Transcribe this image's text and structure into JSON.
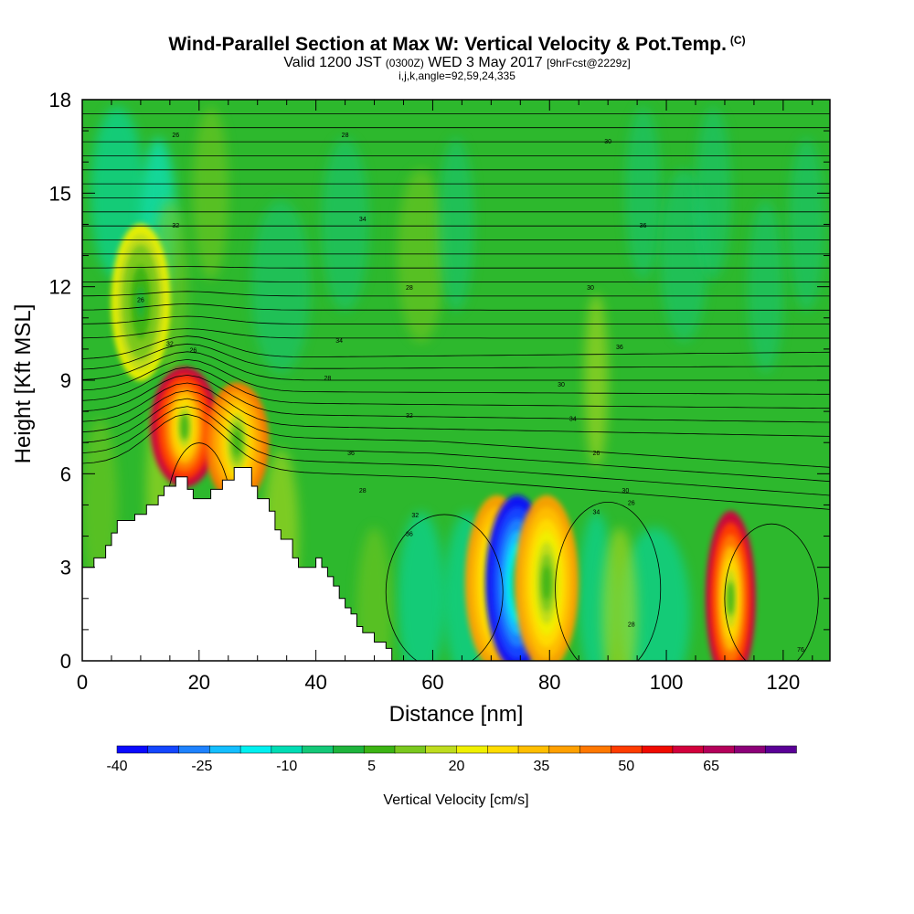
{
  "title": {
    "main": "Wind-Parallel Section at Max W: Vertical Velocity & Pot.Temp.",
    "copyright": "(C)",
    "valid_prefix": "Valid 1200 JST",
    "valid_zulu": "(0300Z)",
    "valid_date": "WED 3 May 2017",
    "forecast": "[9hrFcst@2229z]",
    "indices": "i,j,k,angle=92,59,24,335"
  },
  "chart_data": {
    "type": "heatmap",
    "xlabel": "Distance [nm]",
    "ylabel": "Height [Kft MSL]",
    "xlim": [
      0,
      128
    ],
    "ylim": [
      0,
      18
    ],
    "x_ticks": [
      "0",
      "20",
      "40",
      "60",
      "80",
      "100",
      "120"
    ],
    "y_ticks": [
      "0",
      "3",
      "6",
      "9",
      "12",
      "15",
      "18"
    ],
    "background_color": "#2db82d",
    "colorbar": {
      "label": "Vertical Velocity [cm/s]",
      "tick_labels": [
        "-40",
        "-25",
        "-10",
        "5",
        "20",
        "35",
        "50",
        "65"
      ],
      "colors": [
        "#0a0aff",
        "#1446ff",
        "#1e82ff",
        "#14beff",
        "#00f0f0",
        "#00dcb4",
        "#14c878",
        "#1eb43c",
        "#3cb414",
        "#7ac81e",
        "#bedc1e",
        "#f0f000",
        "#ffdc00",
        "#ffbe00",
        "#ffa000",
        "#ff7800",
        "#ff3c00",
        "#f00a00",
        "#d2003c",
        "#b4005a",
        "#8c0078",
        "#5a0096"
      ]
    },
    "terrain": [
      [
        0,
        0
      ],
      [
        0,
        3
      ],
      [
        2,
        3
      ],
      [
        2,
        3.3
      ],
      [
        4,
        3.3
      ],
      [
        4,
        3.7
      ],
      [
        5,
        3.7
      ],
      [
        5,
        4.1
      ],
      [
        6,
        4.1
      ],
      [
        6,
        4.5
      ],
      [
        9,
        4.5
      ],
      [
        9,
        4.7
      ],
      [
        11,
        4.7
      ],
      [
        11,
        5
      ],
      [
        13,
        5
      ],
      [
        13,
        5.3
      ],
      [
        14,
        5.3
      ],
      [
        14,
        5.6
      ],
      [
        16,
        5.6
      ],
      [
        16,
        5.9
      ],
      [
        18,
        5.9
      ],
      [
        18,
        5.5
      ],
      [
        19,
        5.5
      ],
      [
        19,
        5.2
      ],
      [
        22,
        5.2
      ],
      [
        22,
        5.5
      ],
      [
        24,
        5.5
      ],
      [
        24,
        5.8
      ],
      [
        26,
        5.8
      ],
      [
        26,
        6.2
      ],
      [
        29,
        6.2
      ],
      [
        29,
        5.6
      ],
      [
        30,
        5.6
      ],
      [
        30,
        5.2
      ],
      [
        32,
        5.2
      ],
      [
        32,
        4.8
      ],
      [
        33,
        4.8
      ],
      [
        33,
        4.2
      ],
      [
        34,
        4.2
      ],
      [
        34,
        3.9
      ],
      [
        36,
        3.9
      ],
      [
        36,
        3.3
      ],
      [
        37,
        3.3
      ],
      [
        37,
        3
      ],
      [
        40,
        3
      ],
      [
        40,
        3.3
      ],
      [
        41,
        3.3
      ],
      [
        41,
        3
      ],
      [
        42,
        3
      ],
      [
        42,
        2.7
      ],
      [
        43,
        2.7
      ],
      [
        43,
        2.4
      ],
      [
        44,
        2.4
      ],
      [
        44,
        2
      ],
      [
        45,
        2
      ],
      [
        45,
        1.7
      ],
      [
        46,
        1.7
      ],
      [
        46,
        1.5
      ],
      [
        47,
        1.5
      ],
      [
        47,
        1.1
      ],
      [
        48,
        1.1
      ],
      [
        48,
        0.9
      ],
      [
        50,
        0.9
      ],
      [
        50,
        0.6
      ],
      [
        52,
        0.6
      ],
      [
        52,
        0.4
      ],
      [
        53,
        0.4
      ],
      [
        53,
        0
      ]
    ],
    "isentrope_labels": [
      "26",
      "28",
      "30",
      "32",
      "34",
      "36",
      "76"
    ],
    "velocity_cells": [
      {
        "x": 17.5,
        "y": 7.5,
        "w": 60,
        "color_level": 65
      },
      {
        "x": 26.5,
        "y": 7.0,
        "w": 45,
        "color_level": 50
      },
      {
        "x": 10,
        "y": 11.5,
        "w": 20,
        "color_level": 20
      },
      {
        "x": 71,
        "y": 2.5,
        "w": 40,
        "color_level": 50
      },
      {
        "x": 74.5,
        "y": 2.5,
        "w": -35,
        "color_level": -35
      },
      {
        "x": 79.5,
        "y": 2.5,
        "w": 40,
        "color_level": 35
      },
      {
        "x": 111,
        "y": 2.0,
        "w": 60,
        "color_level": 65
      }
    ]
  }
}
